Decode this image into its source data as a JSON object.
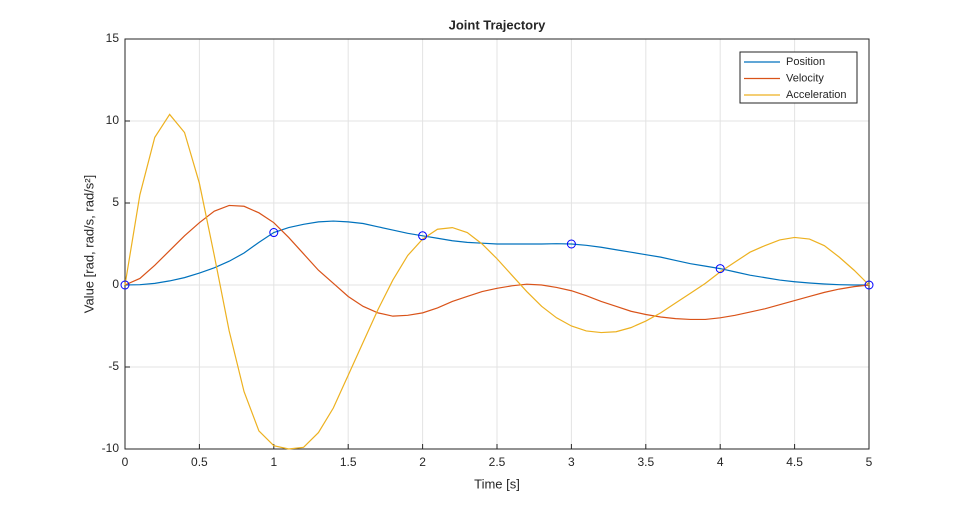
{
  "chart_data": {
    "type": "line",
    "title": "Joint Trajectory",
    "xlabel": "Time [s]",
    "ylabel": "Value [rad, rad/s, rad/s²]",
    "x": [
      0,
      0.1,
      0.2,
      0.3,
      0.4,
      0.5,
      0.6,
      0.7,
      0.8,
      0.9,
      1,
      1.1,
      1.2,
      1.3,
      1.4,
      1.5,
      1.6,
      1.7,
      1.8,
      1.9,
      2,
      2.1,
      2.2,
      2.3,
      2.4,
      2.5,
      2.6,
      2.7,
      2.8,
      2.9,
      3,
      3.1,
      3.2,
      3.3,
      3.4,
      3.5,
      3.6,
      3.7,
      3.8,
      3.9,
      4,
      4.1,
      4.2,
      4.3,
      4.4,
      4.5,
      4.6,
      4.7,
      4.8,
      4.9,
      5
    ],
    "series": [
      {
        "name": "Position",
        "color": "#0072bd",
        "values": [
          0,
          0.02,
          0.1,
          0.25,
          0.45,
          0.73,
          1.05,
          1.45,
          1.95,
          2.6,
          3.2,
          3.5,
          3.7,
          3.85,
          3.9,
          3.85,
          3.75,
          3.55,
          3.35,
          3.15,
          3.0,
          2.85,
          2.7,
          2.6,
          2.55,
          2.5,
          2.5,
          2.5,
          2.5,
          2.52,
          2.5,
          2.42,
          2.3,
          2.15,
          2.0,
          1.85,
          1.7,
          1.5,
          1.3,
          1.15,
          1.0,
          0.8,
          0.6,
          0.45,
          0.3,
          0.2,
          0.12,
          0.06,
          0.02,
          0,
          0
        ]
      },
      {
        "name": "Velocity",
        "color": "#d95319",
        "values": [
          0,
          0.4,
          1.2,
          2.1,
          3.0,
          3.8,
          4.5,
          4.85,
          4.8,
          4.4,
          3.8,
          2.9,
          1.9,
          0.9,
          0.1,
          -0.7,
          -1.3,
          -1.7,
          -1.9,
          -1.85,
          -1.7,
          -1.4,
          -1.0,
          -0.7,
          -0.4,
          -0.2,
          -0.05,
          0.05,
          0,
          -0.15,
          -0.35,
          -0.65,
          -1.0,
          -1.3,
          -1.6,
          -1.8,
          -1.95,
          -2.05,
          -2.1,
          -2.1,
          -2.0,
          -1.85,
          -1.65,
          -1.45,
          -1.2,
          -0.95,
          -0.7,
          -0.45,
          -0.25,
          -0.1,
          0
        ]
      },
      {
        "name": "Acceleration",
        "color": "#edb120",
        "values": [
          0,
          5.5,
          9.0,
          10.4,
          9.3,
          6.2,
          1.8,
          -2.8,
          -6.5,
          -8.9,
          -9.8,
          -10.0,
          -9.9,
          -9.0,
          -7.5,
          -5.5,
          -3.5,
          -1.5,
          0.3,
          1.8,
          2.8,
          3.4,
          3.5,
          3.2,
          2.5,
          1.6,
          0.6,
          -0.4,
          -1.3,
          -2.0,
          -2.5,
          -2.8,
          -2.9,
          -2.85,
          -2.6,
          -2.2,
          -1.7,
          -1.1,
          -0.5,
          0.1,
          0.8,
          1.4,
          2.0,
          2.4,
          2.75,
          2.9,
          2.8,
          2.4,
          1.7,
          0.9,
          0
        ]
      }
    ],
    "waypoints": {
      "color": "#0000ff",
      "x": [
        0,
        1,
        2,
        3,
        4,
        5
      ],
      "values": [
        0,
        3.2,
        3.0,
        2.5,
        1.0,
        0
      ]
    },
    "xlim": [
      0,
      5
    ],
    "ylim": [
      -10,
      15
    ],
    "xticks": [
      0,
      0.5,
      1,
      1.5,
      2,
      2.5,
      3,
      3.5,
      4,
      4.5,
      5
    ],
    "yticks": [
      -10,
      -5,
      0,
      5,
      10,
      15
    ],
    "grid": true,
    "legend": "top-right"
  }
}
